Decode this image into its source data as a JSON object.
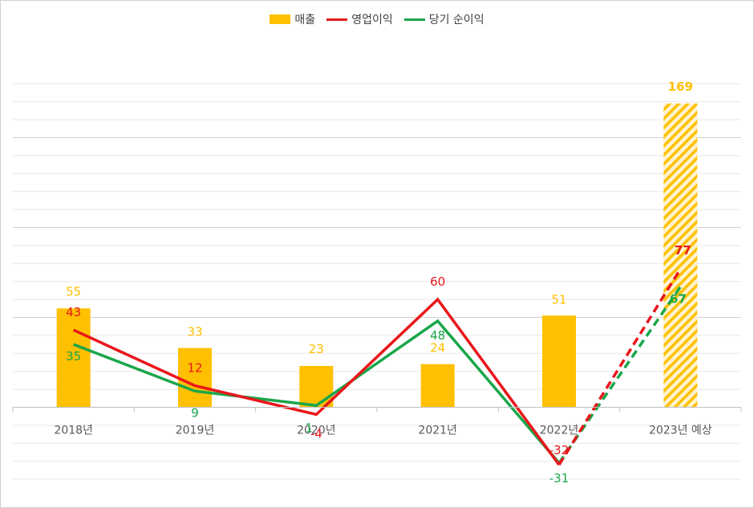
{
  "chart_data": {
    "type": "bar",
    "categories": [
      "2018년",
      "2019년",
      "2020년",
      "2021년",
      "2022년",
      "2023년 예상"
    ],
    "ylim": [
      -40,
      180
    ],
    "grid": true,
    "legend_position": "top-center",
    "series": [
      {
        "name": "매출",
        "type": "bar",
        "color": "#ffc000",
        "values": [
          55,
          33,
          23,
          24,
          51,
          169
        ],
        "labels": [
          "55",
          "33",
          "23",
          "24",
          "51",
          "169"
        ],
        "forecast_from_index": 5
      },
      {
        "name": "영업이익",
        "type": "line",
        "color": "#e8171c",
        "values": [
          43,
          12,
          -4,
          60,
          -32,
          77
        ],
        "labels": [
          "43",
          "12",
          "-4",
          "60",
          "-32",
          "77"
        ],
        "forecast_from_index": 4
      },
      {
        "name": "당기 순이익",
        "type": "line",
        "color": "#1aa64a",
        "values": [
          35,
          9,
          1,
          48,
          -31,
          67
        ],
        "labels": [
          "35",
          "9",
          "1",
          "48",
          "-31",
          "67"
        ],
        "forecast_from_index": 4
      }
    ]
  }
}
